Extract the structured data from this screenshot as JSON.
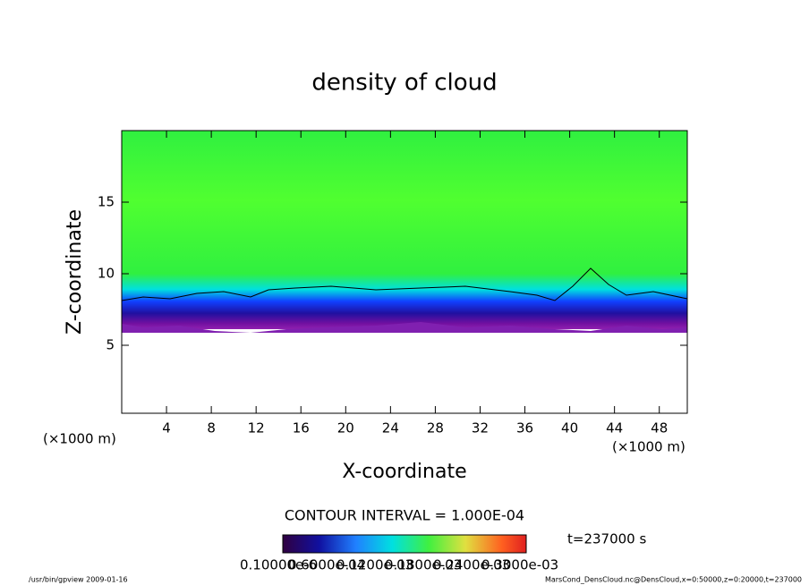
{
  "chart_data": {
    "type": "contour",
    "title": "density of cloud",
    "x_label": "X-coordinate",
    "y_label": "Z-coordinate",
    "x_unit": "(×1000 m)",
    "xlim": [
      0,
      50.5
    ],
    "ylim": [
      0.25,
      20
    ],
    "xticks": [
      4,
      8,
      12,
      16,
      20,
      24,
      28,
      32,
      36,
      40,
      44,
      48
    ],
    "yticks": [
      5,
      10,
      15
    ],
    "contour_interval": "CONTOUR INTERVAL = 1.000E-04",
    "time_label": "t=237000 s",
    "colorbar_labels": [
      "0.10000e-6",
      "0.6000e-04",
      "0.1200e-03",
      "0.1800e-03",
      "0.2400e-03",
      "0.3000e-03"
    ],
    "footer_left": "/usr/bin/gpview  2009-01-16",
    "footer_right": "MarsCond_DensCloud.nc@DensCloud,x=0:50000,z=0:20000,t=237000"
  }
}
